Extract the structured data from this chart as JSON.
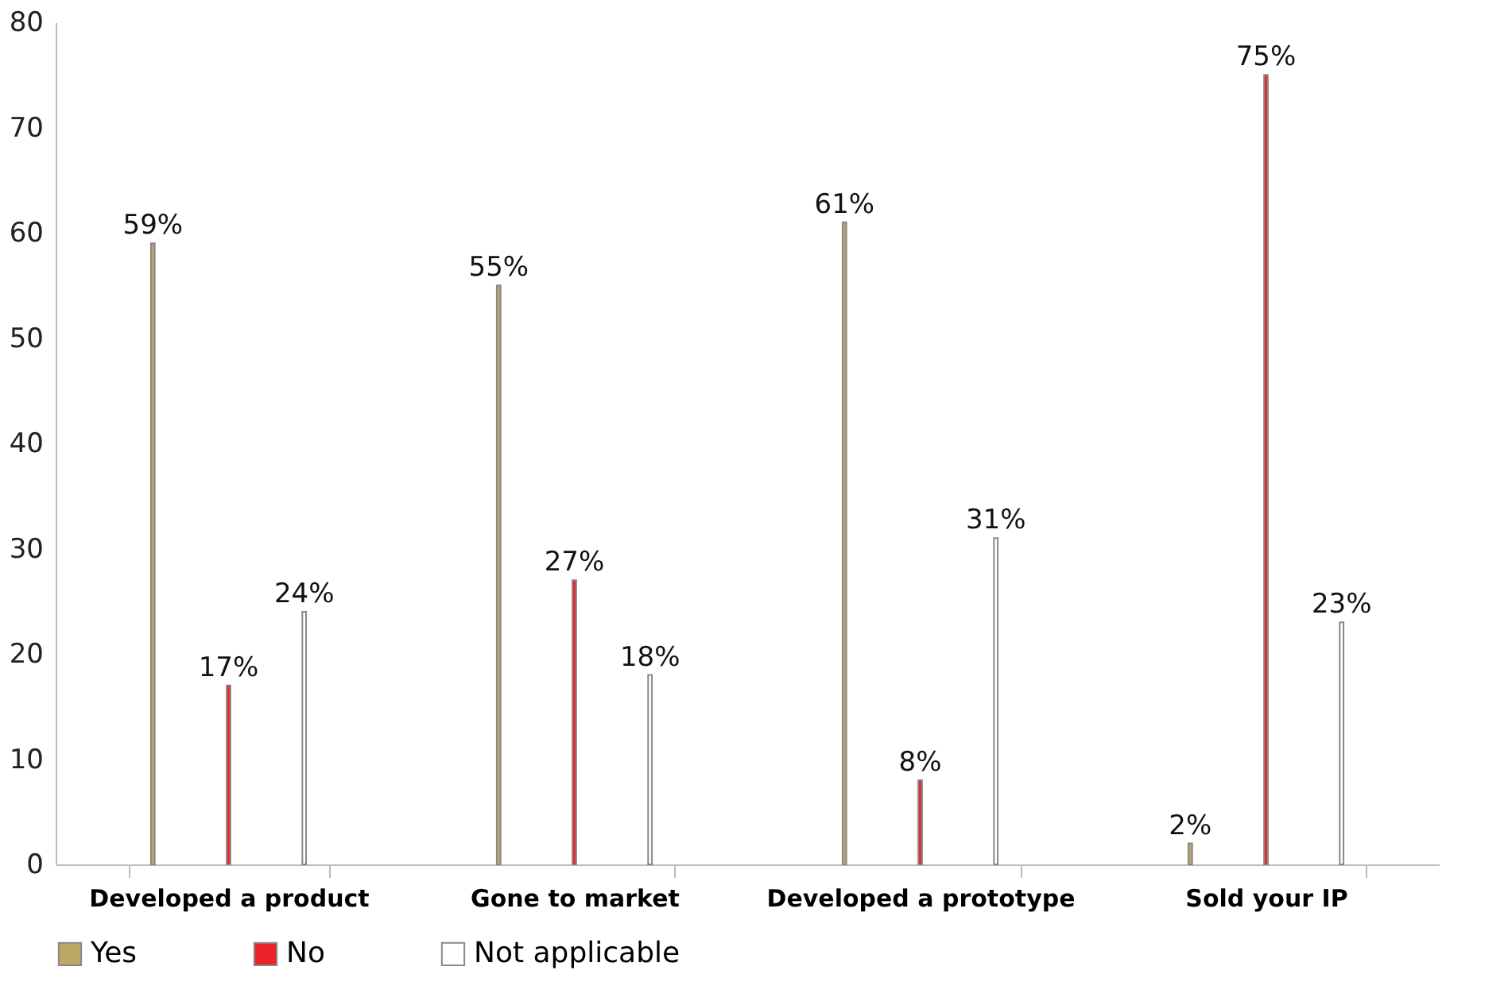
{
  "chart_data": {
    "type": "bar",
    "categories": [
      "Developed a product",
      "Gone to market",
      "Developed a prototype",
      "Sold your IP"
    ],
    "series": [
      {
        "name": "Yes",
        "color": "#bca764",
        "values": [
          59,
          55,
          61,
          2
        ],
        "value_labels": [
          "59%",
          "55%",
          "61%",
          "2%"
        ]
      },
      {
        "name": "No",
        "color": "#ee2229",
        "values": [
          17,
          27,
          8,
          75
        ],
        "value_labels": [
          "17%",
          "27%",
          "8%",
          "75%"
        ]
      },
      {
        "name": "Not applicable",
        "color": "#ffffff",
        "values": [
          24,
          18,
          31,
          23
        ],
        "value_labels": [
          "24%",
          "18%",
          "31%",
          "23%"
        ]
      }
    ],
    "ylim": [
      0,
      80
    ],
    "yticks": [
      0,
      10,
      20,
      30,
      40,
      50,
      60,
      70,
      80
    ],
    "grid": false,
    "legend": "bottom"
  }
}
